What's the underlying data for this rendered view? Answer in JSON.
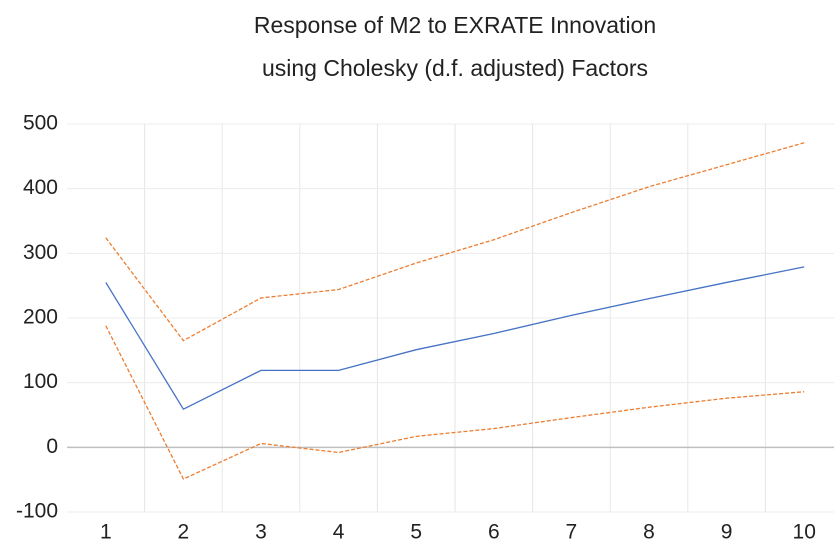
{
  "chart_data": {
    "type": "line",
    "title": [
      "Response of M2 to EXRATE Innovation",
      "using Cholesky (d.f. adjusted) Factors"
    ],
    "categories": [
      "1",
      "2",
      "3",
      "4",
      "5",
      "6",
      "7",
      "8",
      "9",
      "10"
    ],
    "series": [
      {
        "color": "#4472c4",
        "dashed": false,
        "values": [
          255,
          59,
          119,
          119,
          151,
          176,
          204,
          230,
          255,
          279
        ]
      },
      {
        "color": "#ed7d31",
        "dashed": true,
        "values": [
          324,
          165,
          231,
          244,
          285,
          321,
          363,
          403,
          437,
          471
        ]
      },
      {
        "color": "#ed7d31",
        "dashed": true,
        "values": [
          188,
          -49,
          6,
          -8,
          17,
          29,
          46,
          62,
          76,
          86
        ]
      }
    ],
    "ylim": [
      -100,
      500
    ],
    "yticks": [
      -100,
      0,
      100,
      200,
      300,
      400,
      500
    ],
    "grid": true
  }
}
